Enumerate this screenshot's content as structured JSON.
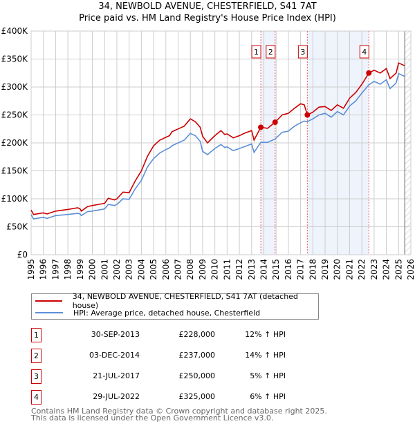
{
  "chart_data": {
    "type": "line",
    "title": "34, NEWBOLD AVENUE, CHESTERFIELD, S41 7AT",
    "subtitle": "Price paid vs. HM Land Registry's House Price Index (HPI)",
    "xlim": [
      1995,
      2026
    ],
    "ylim": [
      0,
      400000
    ],
    "y_ticks": [
      0,
      50000,
      100000,
      150000,
      200000,
      250000,
      300000,
      350000,
      400000
    ],
    "y_tick_labels": [
      "£0",
      "£50K",
      "£100K",
      "£150K",
      "£200K",
      "£250K",
      "£300K",
      "£350K",
      "£400K"
    ],
    "x_ticks": [
      "1995",
      "1996",
      "1997",
      "1998",
      "1999",
      "2000",
      "2001",
      "2002",
      "2003",
      "2004",
      "2005",
      "2006",
      "2007",
      "2008",
      "2009",
      "2010",
      "2011",
      "2012",
      "2013",
      "2014",
      "2015",
      "2016",
      "2017",
      "2018",
      "2019",
      "2020",
      "2021",
      "2022",
      "2023",
      "2024",
      "2025",
      "2026"
    ],
    "grid": true,
    "shaded_ranges": [
      [
        2013.75,
        2014.92
      ],
      [
        2017.55,
        2022.57
      ]
    ],
    "hatched_after": 2025.5,
    "series": [
      {
        "name": "34, NEWBOLD AVENUE, CHESTERFIELD, S41 7AT (detached house)",
        "color": "#cc0000",
        "x": [
          1995,
          1995.2,
          1996,
          1996.3,
          1997,
          1998,
          1998.8,
          1999,
          1999.1,
          1999.6,
          2000,
          2000.5,
          2001,
          2001.3,
          2001.8,
          2002,
          2002.5,
          2003,
          2003.5,
          2004,
          2004.5,
          2005,
          2005.5,
          2006,
          2006.3,
          2006.5,
          2007,
          2007.5,
          2008,
          2008.4,
          2008.8,
          2009,
          2009.4,
          2010,
          2010.5,
          2010.8,
          2011,
          2011.5,
          2012,
          2012.5,
          2013,
          2013.2,
          2013.75,
          2014.3,
          2014.92,
          2015.5,
          2016,
          2016.5,
          2017,
          2017.3,
          2017.55,
          2018,
          2018.5,
          2019,
          2019.5,
          2020,
          2020.5,
          2021,
          2021.5,
          2022,
          2022.57,
          2023,
          2023.5,
          2024,
          2024.3,
          2024.8,
          2025,
          2025.5
        ],
        "y": [
          80000,
          72000,
          75000,
          73000,
          78000,
          81000,
          84000,
          82000,
          78000,
          86000,
          88000,
          90000,
          92000,
          101000,
          98000,
          100000,
          112000,
          111000,
          132000,
          150000,
          176000,
          195000,
          205000,
          210000,
          213000,
          220000,
          225000,
          230000,
          243000,
          238000,
          228000,
          212000,
          200000,
          213000,
          222000,
          215000,
          216000,
          209000,
          213000,
          218000,
          222000,
          205000,
          228000,
          226000,
          237000,
          250000,
          253000,
          262000,
          270000,
          268000,
          250000,
          255000,
          264000,
          265000,
          258000,
          268000,
          262000,
          280000,
          290000,
          305000,
          325000,
          330000,
          325000,
          333000,
          315000,
          325000,
          343000,
          338000
        ]
      },
      {
        "name": "HPI: Average price, detached house, Chesterfield",
        "color": "#5b8fd6",
        "x": [
          1995,
          1995.2,
          1996,
          1996.3,
          1997,
          1998,
          1998.8,
          1999,
          1999.1,
          1999.6,
          2000,
          2000.5,
          2001,
          2001.3,
          2001.8,
          2002,
          2002.5,
          2003,
          2003.5,
          2004,
          2004.5,
          2005,
          2005.5,
          2006,
          2006.3,
          2006.5,
          2007,
          2007.5,
          2008,
          2008.4,
          2008.8,
          2009,
          2009.4,
          2010,
          2010.5,
          2010.8,
          2011,
          2011.5,
          2012,
          2012.5,
          2013,
          2013.2,
          2013.75,
          2014.3,
          2014.92,
          2015.5,
          2016,
          2016.5,
          2017,
          2017.3,
          2017.55,
          2018,
          2018.5,
          2019,
          2019.5,
          2020,
          2020.5,
          2021,
          2021.5,
          2022,
          2022.57,
          2023,
          2023.5,
          2024,
          2024.3,
          2024.8,
          2025,
          2025.5
        ],
        "y": [
          72000,
          64000,
          67000,
          65000,
          70000,
          72000,
          74000,
          73000,
          70000,
          77000,
          78000,
          80000,
          82000,
          90000,
          88000,
          90000,
          100000,
          99000,
          118000,
          133000,
          157000,
          172000,
          182000,
          188000,
          191000,
          195000,
          200000,
          205000,
          217000,
          213000,
          203000,
          185000,
          179000,
          190000,
          197000,
          192000,
          193000,
          186000,
          190000,
          194000,
          198000,
          183000,
          201000,
          201000,
          207000,
          219000,
          221000,
          230000,
          236000,
          239000,
          238000,
          243000,
          250000,
          253000,
          246000,
          256000,
          250000,
          266000,
          275000,
          289000,
          304000,
          310000,
          305000,
          313000,
          297000,
          307000,
          324000,
          319000
        ]
      }
    ],
    "sales": [
      {
        "n": "1",
        "x": 2013.75,
        "date": "30-SEP-2013",
        "price": 228000,
        "price_label": "£228,000",
        "hpi": "12% ↑ HPI"
      },
      {
        "n": "2",
        "x": 2014.92,
        "date": "03-DEC-2014",
        "price": 237000,
        "price_label": "£237,000",
        "hpi": "14% ↑ HPI"
      },
      {
        "n": "3",
        "x": 2017.55,
        "date": "21-JUL-2017",
        "price": 250000,
        "price_label": "£250,000",
        "hpi": "5% ↑ HPI"
      },
      {
        "n": "4",
        "x": 2022.57,
        "date": "29-JUL-2022",
        "price": 325000,
        "price_label": "£325,000",
        "hpi": "6% ↑ HPI"
      }
    ],
    "legend_position": "below"
  },
  "footer": {
    "line1": "Contains HM Land Registry data © Crown copyright and database right 2025.",
    "line2": "This data is licensed under the Open Government Licence v3.0."
  }
}
